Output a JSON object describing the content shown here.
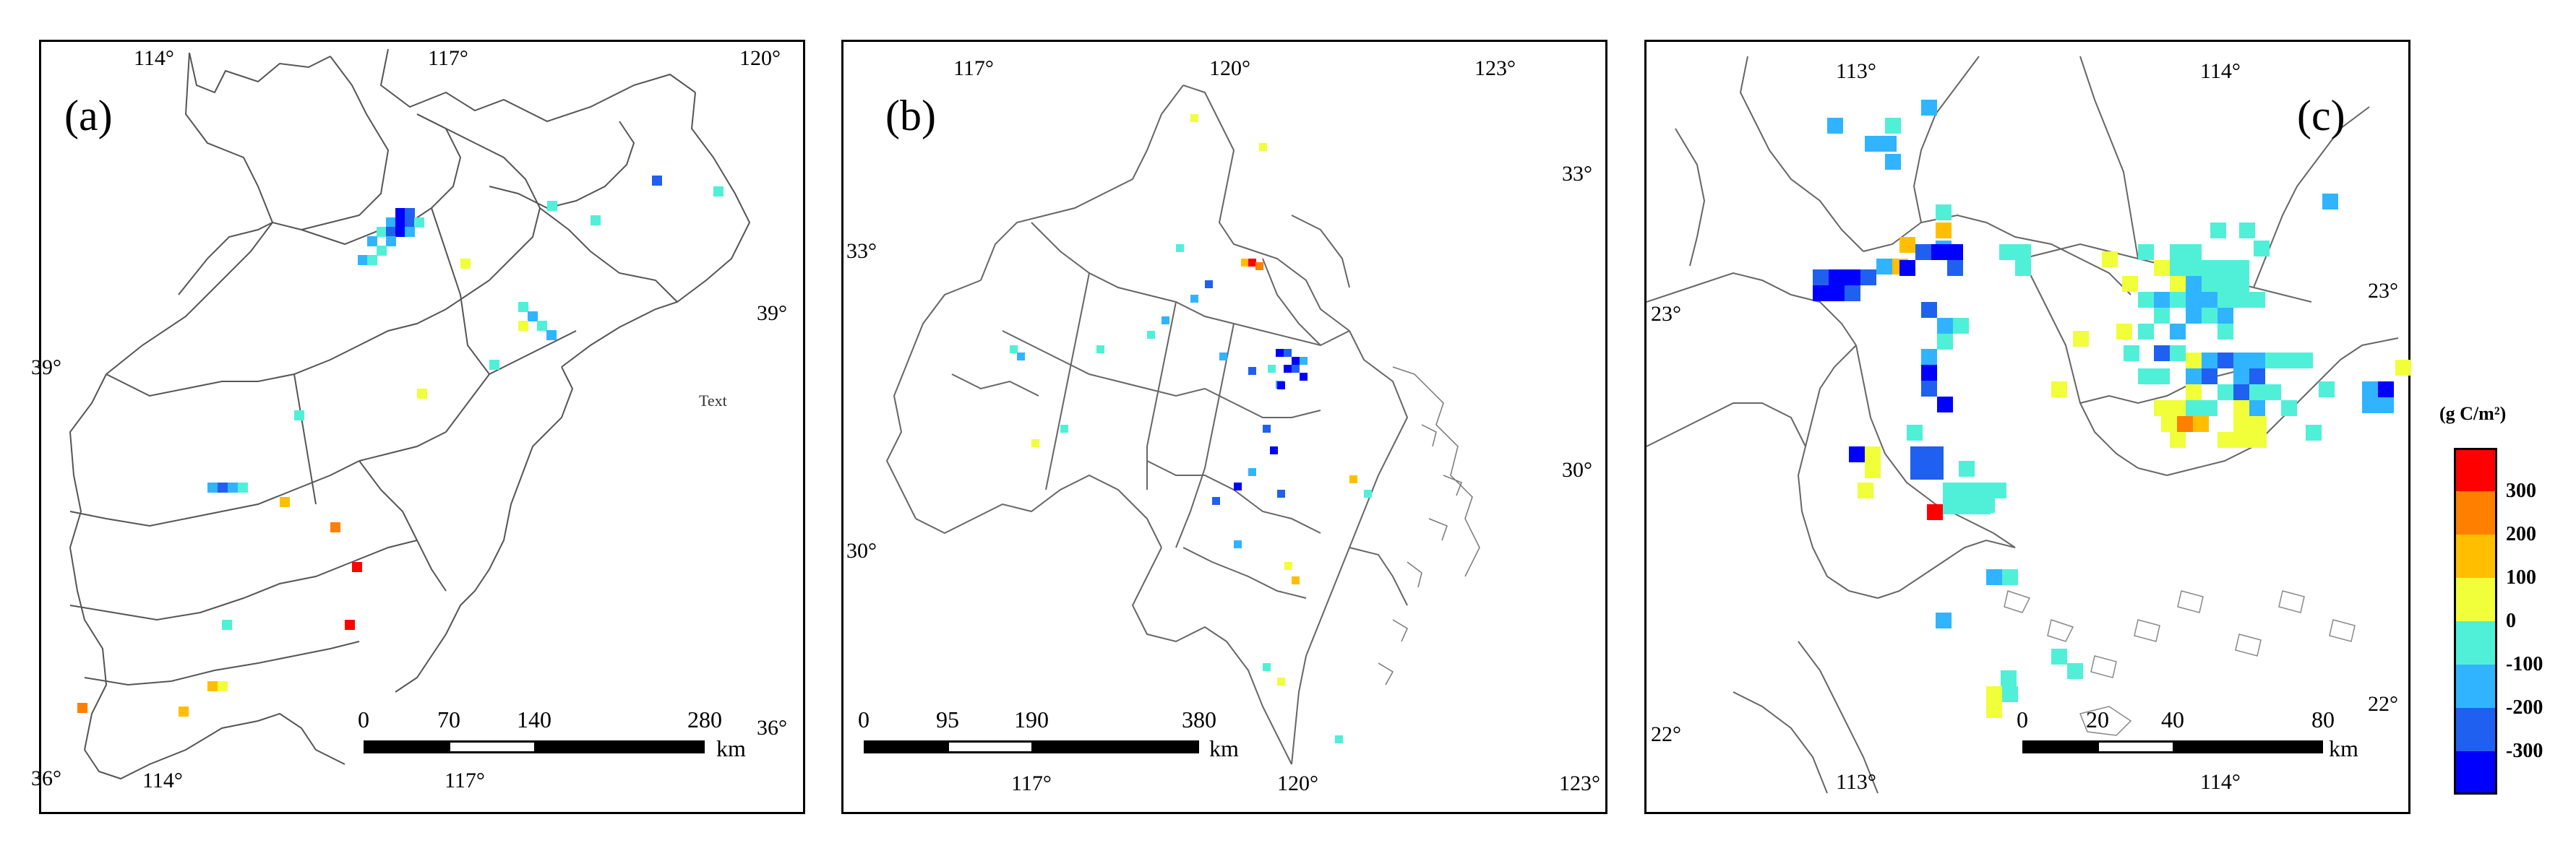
{
  "panels": [
    {
      "label": "(a)",
      "lon_top": [
        "114°",
        "117°",
        "120°"
      ],
      "lon_bottom": [
        "114°",
        "117°"
      ],
      "lat_left": [
        "39°",
        "36°"
      ],
      "lat_right": [
        "39°",
        "36°"
      ],
      "stray_text": "Text",
      "scale": {
        "ticks": [
          "0",
          "70",
          "140",
          "280"
        ],
        "unit": "km"
      },
      "cells_value_gC_m2": [
        -300,
        -200,
        -100,
        -100,
        0,
        -100,
        -200,
        -100,
        0,
        100,
        -100,
        -100,
        -200,
        -100,
        -100,
        -100,
        0,
        200,
        300,
        100,
        -100,
        0,
        100,
        -100,
        0,
        -100
      ]
    },
    {
      "label": "(b)",
      "lon_top": [
        "117°",
        "120°",
        "123°"
      ],
      "lon_bottom": [
        "117°",
        "120°",
        "123°"
      ],
      "lat_left": [
        "33°",
        "30°"
      ],
      "lat_right": [
        "33°",
        "30°"
      ],
      "scale": {
        "ticks": [
          "0",
          "95",
          "190",
          "380"
        ],
        "unit": "km"
      },
      "cells_value_gC_m2": [
        0,
        -100,
        300,
        200,
        -100,
        -200,
        -300,
        -300,
        -200,
        -100,
        -300,
        -100,
        0,
        -100,
        -200,
        0,
        -100,
        -100,
        0,
        -100,
        -300,
        100,
        0,
        -100,
        0,
        -100
      ]
    },
    {
      "label": "(c)",
      "lon_top": [
        "113°",
        "114°"
      ],
      "lon_bottom": [
        "113°",
        "114°"
      ],
      "lat_left": [
        "23°",
        "22°"
      ],
      "lat_right": [
        "23°",
        "22°"
      ],
      "scale": {
        "ticks": [
          "0",
          "20",
          "40",
          "80"
        ],
        "unit": "km"
      },
      "cells_value_gC_m2": [
        -300,
        -300,
        -200,
        -100,
        -100,
        100,
        -300,
        -200,
        -100,
        -300,
        -300,
        -200,
        -100,
        0,
        300,
        -100,
        -200,
        -100,
        0,
        -100,
        -100,
        0,
        -100,
        -200,
        -100,
        -300,
        200,
        100,
        0,
        -100
      ]
    }
  ],
  "legend": {
    "title": "(g C/m²)",
    "classes": [
      {
        "label": "300",
        "color": "#ff0000"
      },
      {
        "label": "200",
        "color": "#ff7f00"
      },
      {
        "label": "100",
        "color": "#ffbf00"
      },
      {
        "label": "0",
        "color": "#f0ff3a"
      },
      {
        "label": "-100",
        "color": "#50f0d8"
      },
      {
        "label": "-200",
        "color": "#30b4ff"
      },
      {
        "label": "-300",
        "color": "#2060f0"
      },
      {
        "label": "",
        "color": "#0000ff"
      }
    ]
  }
}
